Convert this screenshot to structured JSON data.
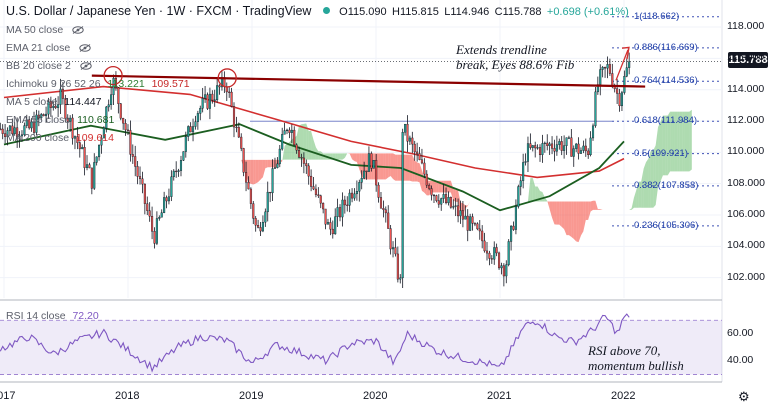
{
  "header": {
    "symbol": "U.S. Dollar / Japanese Yen · 1W · FXCM · TradingView",
    "open": "O115.090",
    "high": "H115.815",
    "low": "L114.946",
    "close": "C115.788",
    "change": "+0.698 (+0.61%)"
  },
  "indicators": [
    {
      "label": "MA 50 close",
      "value": ""
    },
    {
      "label": "EMA 21 close",
      "value": ""
    },
    {
      "label": "BB 20 close 2",
      "value": ""
    },
    {
      "label": "Ichimoku 9 26 52 26",
      "value": "113.221",
      "value2": "109.571"
    },
    {
      "label": "MA 5 close",
      "value": "114.447"
    },
    {
      "label": "EMA 55 close",
      "value": "110.681"
    },
    {
      "label": "MA 200 close",
      "value": "109.614"
    }
  ],
  "last_price": "115.788",
  "annotations": {
    "top_line1": "Extends trendline",
    "top_line2": "break, Eyes 88.6% Fib",
    "rsi_line1": "RSI above 70,",
    "rsi_line2": "momentum bullish"
  },
  "rsi": {
    "label": "RSI 14 close",
    "value": "72.20"
  },
  "colors": {
    "up": "#26a69a",
    "down": "#ef5350",
    "trendline": "#8b0000",
    "ema55": "#1b5e20",
    "ma200": "#d32f2f",
    "rsi": "#7e57c2",
    "fib": "#3f51b5"
  },
  "chart_data": {
    "type": "candlestick",
    "x_ticks": [
      "2017",
      "2018",
      "2019",
      "2020",
      "2021",
      "2022"
    ],
    "y_ticks": [
      102.0,
      104.0,
      106.0,
      108.0,
      110.0,
      112.0,
      114.0,
      116.0,
      118.0
    ],
    "y_tick_labels": [
      "102.000",
      "104.000",
      "106.000",
      "108.000",
      "110.000",
      "112.000",
      "114.000",
      "116.000",
      "118.000"
    ],
    "ylim": [
      100.7,
      119.6
    ],
    "last_close": 115.788,
    "fib_levels": [
      {
        "label": "1(118.662)",
        "value": 118.662
      },
      {
        "label": "0.886(116.669)",
        "value": 116.669
      },
      {
        "label": "0.764(114.536)",
        "value": 114.536
      },
      {
        "label": "0.618(111.984)",
        "value": 111.984
      },
      {
        "label": "0.5(109.921)",
        "value": 109.921
      },
      {
        "label": "0.382(107.858)",
        "value": 107.858
      },
      {
        "label": "0.236(105.306)",
        "value": 105.306
      }
    ],
    "trendline": {
      "from": {
        "date": "2017-09",
        "price": 114.9
      },
      "to": {
        "date": "2022-01",
        "price": 114.2
      }
    },
    "key_points": [
      {
        "date": "2017-03",
        "price": 111.5
      },
      {
        "date": "2017-06",
        "price": 113.5
      },
      {
        "date": "2017-09",
        "price": 108.2
      },
      {
        "date": "2017-11",
        "price": 114.7
      },
      {
        "date": "2018-03",
        "price": 104.6
      },
      {
        "date": "2018-07",
        "price": 112.5
      },
      {
        "date": "2018-10",
        "price": 114.5
      },
      {
        "date": "2019-01",
        "price": 104.8
      },
      {
        "date": "2019-04",
        "price": 112.0
      },
      {
        "date": "2019-08",
        "price": 105.0
      },
      {
        "date": "2019-12",
        "price": 109.7
      },
      {
        "date": "2020-03",
        "price": 101.2
      },
      {
        "date": "2020-03",
        "price": 111.7
      },
      {
        "date": "2020-06",
        "price": 107.5
      },
      {
        "date": "2020-09",
        "price": 105.8
      },
      {
        "date": "2021-01",
        "price": 102.6
      },
      {
        "date": "2021-03",
        "price": 110.0
      },
      {
        "date": "2021-06",
        "price": 110.6
      },
      {
        "date": "2021-09",
        "price": 110.0
      },
      {
        "date": "2021-10",
        "price": 114.5
      },
      {
        "date": "2021-11",
        "price": 115.5
      },
      {
        "date": "2021-12",
        "price": 113.4
      },
      {
        "date": "2022-01",
        "price": 115.788
      }
    ],
    "ema55_points": [
      [
        2017.0,
        110.5
      ],
      [
        2017.7,
        111.7
      ],
      [
        2018.3,
        110.8
      ],
      [
        2018.9,
        111.8
      ],
      [
        2019.3,
        110.5
      ],
      [
        2019.8,
        109.2
      ],
      [
        2020.2,
        109.0
      ],
      [
        2020.7,
        107.5
      ],
      [
        2021.0,
        106.3
      ],
      [
        2021.4,
        107.2
      ],
      [
        2021.8,
        109.0
      ],
      [
        2022.0,
        110.7
      ]
    ],
    "ma200_points": [
      [
        2017.0,
        113.5
      ],
      [
        2017.8,
        114.2
      ],
      [
        2018.5,
        113.7
      ],
      [
        2019.2,
        112.1
      ],
      [
        2019.8,
        110.7
      ],
      [
        2020.3,
        109.9
      ],
      [
        2020.8,
        109.0
      ],
      [
        2021.3,
        108.4
      ],
      [
        2021.8,
        108.8
      ],
      [
        2022.0,
        109.6
      ]
    ],
    "rsi_yticks": [
      60.0,
      40.0
    ],
    "rsi_ylim": [
      26,
      82
    ],
    "rsi_band": [
      30,
      70
    ],
    "rsi_points": [
      [
        2017.0,
        50
      ],
      [
        2017.2,
        58
      ],
      [
        2017.4,
        45
      ],
      [
        2017.6,
        55
      ],
      [
        2017.8,
        61
      ],
      [
        2018.0,
        48
      ],
      [
        2018.2,
        35
      ],
      [
        2018.4,
        50
      ],
      [
        2018.6,
        58
      ],
      [
        2018.8,
        55
      ],
      [
        2019.0,
        38
      ],
      [
        2019.2,
        52
      ],
      [
        2019.4,
        46
      ],
      [
        2019.6,
        40
      ],
      [
        2019.8,
        53
      ],
      [
        2020.0,
        55
      ],
      [
        2020.15,
        38
      ],
      [
        2020.25,
        60
      ],
      [
        2020.5,
        47
      ],
      [
        2020.7,
        42
      ],
      [
        2020.9,
        38
      ],
      [
        2021.0,
        34
      ],
      [
        2021.2,
        66
      ],
      [
        2021.3,
        70
      ],
      [
        2021.45,
        58
      ],
      [
        2021.6,
        54
      ],
      [
        2021.75,
        63
      ],
      [
        2021.85,
        73
      ],
      [
        2021.95,
        60
      ],
      [
        2022.0,
        72.2
      ]
    ]
  }
}
